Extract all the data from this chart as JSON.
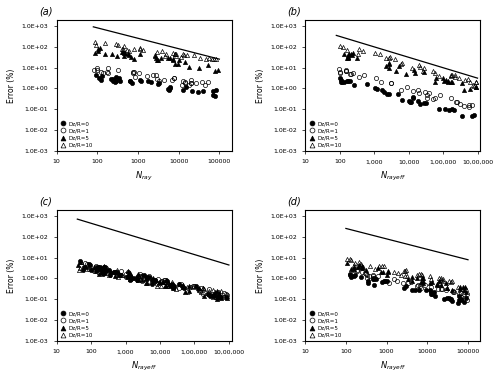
{
  "subplot_labels": [
    "(a)",
    "(b)",
    "(c)",
    "(d)"
  ],
  "ylabel": "Error (%)",
  "ylim": [
    0.001,
    2000.0
  ],
  "yticks": [
    0.001,
    0.01,
    0.1,
    1.0,
    10.0,
    100.0,
    1000.0
  ],
  "ytick_labels": [
    "1.0E-03",
    "1.0E-02",
    "1.0E-01",
    "1.0E+00",
    "1.0E+01",
    "1.0E+02",
    "1.0E+03"
  ],
  "legend_labels": [
    "Dz/R=0",
    "Dz/R=1",
    "Dz/R=5",
    "Dz/R=10"
  ],
  "subplot_a_xlim": [
    10,
    200000
  ],
  "subplot_a_xticks": [
    10,
    100,
    1000,
    10000,
    100000
  ],
  "subplot_a_xticklabels": [
    "10",
    "100",
    "1000",
    "10000",
    "100000"
  ],
  "subplot_a_xlabel": "N_ray",
  "subplot_b_xlim": [
    10,
    1200000
  ],
  "subplot_b_xticks": [
    10,
    100,
    1000,
    10000,
    100000,
    1000000
  ],
  "subplot_b_xticklabels": [
    "10",
    "100",
    "1,000",
    "10,000",
    "1,00,000",
    "10,00,000"
  ],
  "subplot_b_xlabel": "N_rayeff",
  "subplot_c_xlim": [
    10,
    1200000
  ],
  "subplot_c_xticks": [
    10,
    100,
    1000,
    10000,
    100000,
    1000000
  ],
  "subplot_c_xticklabels": [
    "10",
    "100",
    "1,000",
    "10,000",
    "1,00,000",
    "10,00,000"
  ],
  "subplot_c_xlabel": "N_rayeff",
  "subplot_d_xlim": [
    10,
    200000
  ],
  "subplot_d_xticks": [
    10,
    100,
    1000,
    10000,
    100000
  ],
  "subplot_d_xticklabels": [
    "10",
    "100",
    "1000",
    "10000",
    "100000"
  ],
  "subplot_d_xlabel": "N_rayeff",
  "marker_size": 3,
  "mew": 0.5,
  "ref_lw": 0.9
}
